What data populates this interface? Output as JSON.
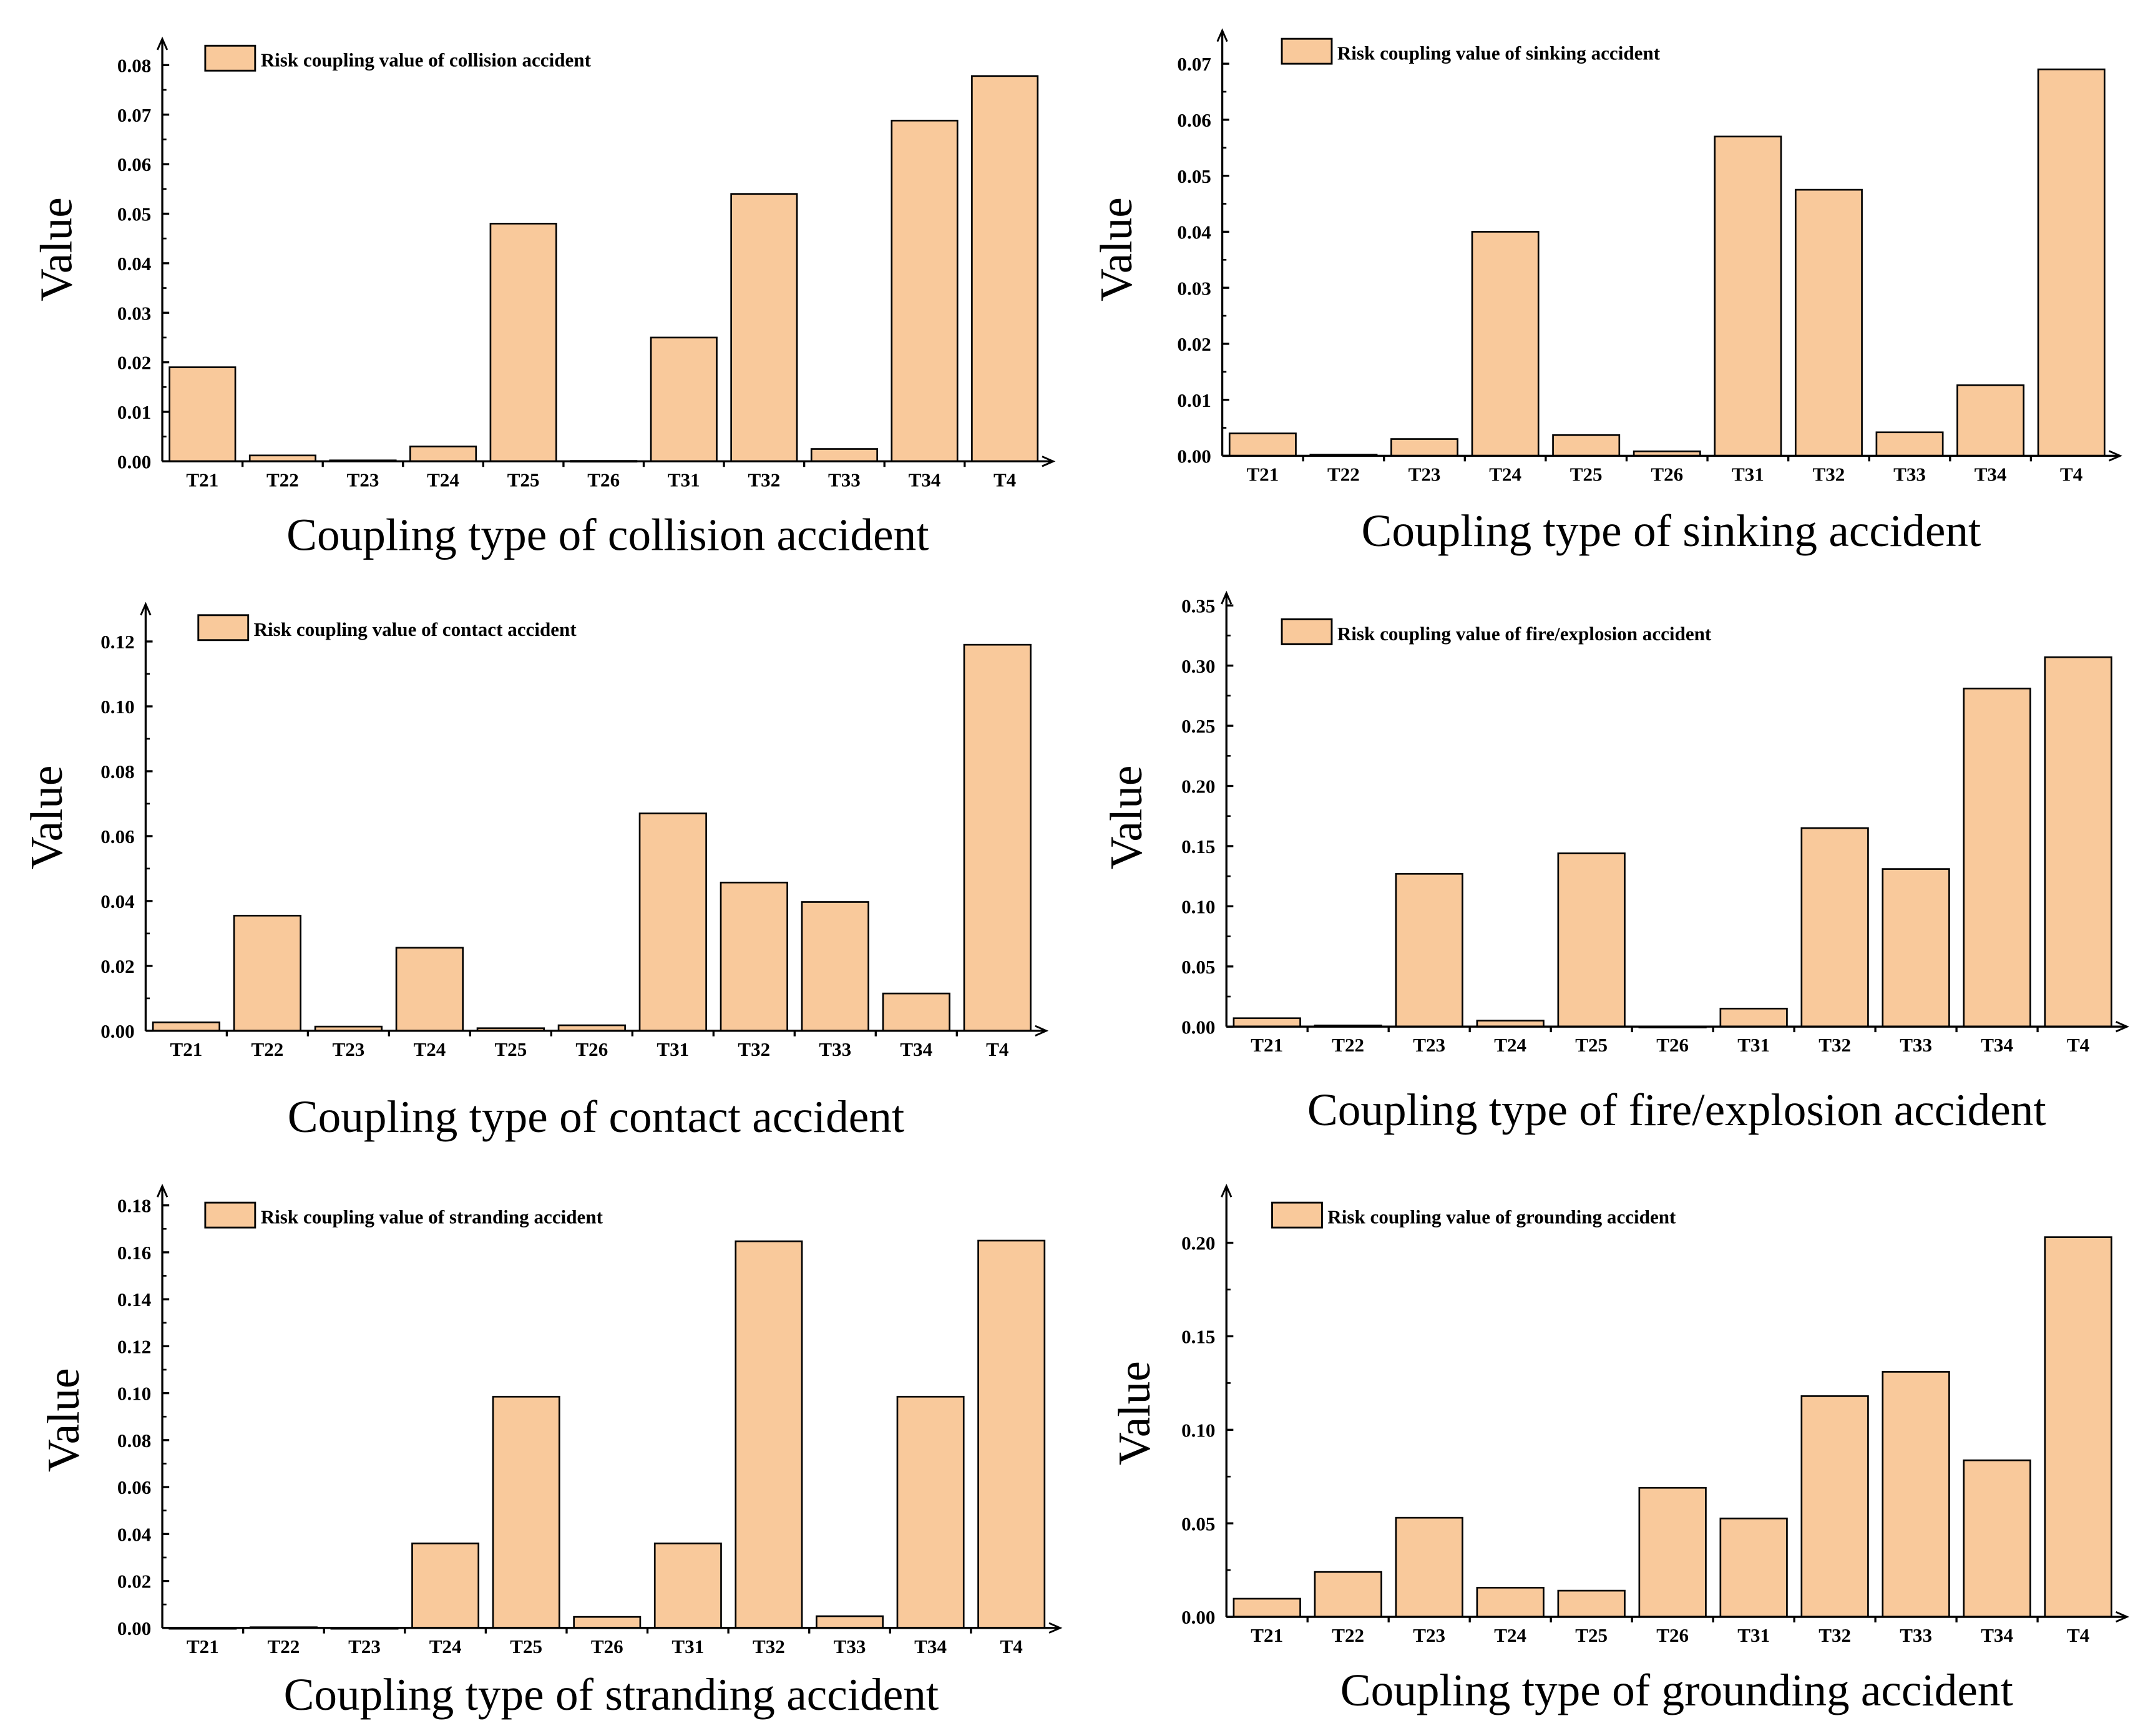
{
  "bar_color": "#F9C99B",
  "chart_data": [
    {
      "type": "bar",
      "title": "",
      "legend": "Risk coupling value of collision accident",
      "legend_position": "top-left",
      "xlabel": "Coupling type of collision accident",
      "ylabel": "Value",
      "categories": [
        "T21",
        "T22",
        "T23",
        "T24",
        "T25",
        "T26",
        "T31",
        "T32",
        "T33",
        "T34",
        "T4"
      ],
      "values": [
        0.019,
        0.0012,
        0.0002,
        0.003,
        0.048,
        0.0001,
        0.025,
        0.054,
        0.0025,
        0.0688,
        0.0778
      ],
      "yticks": [
        "0.00",
        "0.01",
        "0.02",
        "0.03",
        "0.04",
        "0.05",
        "0.06",
        "0.07",
        "0.08"
      ],
      "ylim": [
        0,
        0.08
      ]
    },
    {
      "type": "bar",
      "title": "",
      "legend": "Risk coupling value of sinking accident",
      "legend_position": "top-left",
      "xlabel": "Coupling type of sinking accident",
      "ylabel": "Value",
      "categories": [
        "T21",
        "T22",
        "T23",
        "T24",
        "T25",
        "T26",
        "T31",
        "T32",
        "T33",
        "T34",
        "T4"
      ],
      "values": [
        0.004,
        0.0002,
        0.003,
        0.04,
        0.0037,
        0.0008,
        0.057,
        0.0475,
        0.0042,
        0.0126,
        0.069
      ],
      "yticks": [
        "0.00",
        "0.01",
        "0.02",
        "0.03",
        "0.04",
        "0.05",
        "0.06",
        "0.07"
      ],
      "ylim": [
        0,
        0.07
      ]
    },
    {
      "type": "bar",
      "title": "",
      "legend": "Risk coupling value of contact accident",
      "legend_position": "top-left",
      "xlabel": "Coupling type of contact accident",
      "ylabel": "Value",
      "categories": [
        "T21",
        "T22",
        "T23",
        "T24",
        "T25",
        "T26",
        "T31",
        "T32",
        "T33",
        "T34",
        "T4"
      ],
      "values": [
        0.0026,
        0.0355,
        0.0013,
        0.0256,
        0.0008,
        0.0017,
        0.067,
        0.0457,
        0.0397,
        0.0115,
        0.119
      ],
      "yticks": [
        "0.00",
        "0.02",
        "0.04",
        "0.06",
        "0.08",
        "0.10",
        "0.12"
      ],
      "ylim": [
        0,
        0.12
      ]
    },
    {
      "type": "bar",
      "title": "",
      "legend": "Risk coupling value of fire/explosion accident",
      "legend_position": "top-left",
      "xlabel": "Coupling type of fire/explosion accident",
      "ylabel": "Value",
      "categories": [
        "T21",
        "T22",
        "T23",
        "T24",
        "T25",
        "T26",
        "T31",
        "T32",
        "T33",
        "T34",
        "T4"
      ],
      "values": [
        0.007,
        0.001,
        0.127,
        0.005,
        0.144,
        0.0,
        0.015,
        0.165,
        0.131,
        0.281,
        0.307
      ],
      "yticks": [
        "0.00",
        "0.05",
        "0.10",
        "0.15",
        "0.20",
        "0.25",
        "0.30",
        "0.35"
      ],
      "ylim": [
        0,
        0.35
      ]
    },
    {
      "type": "bar",
      "title": "",
      "legend": "Risk coupling value of stranding accident",
      "legend_position": "top-left",
      "xlabel": "Coupling type of stranding accident",
      "ylabel": "Value",
      "categories": [
        "T21",
        "T22",
        "T23",
        "T24",
        "T25",
        "T26",
        "T31",
        "T32",
        "T33",
        "T34",
        "T4"
      ],
      "values": [
        0.0,
        0.0003,
        0.0,
        0.036,
        0.0985,
        0.0047,
        0.036,
        0.1647,
        0.005,
        0.0985,
        0.165
      ],
      "yticks": [
        "0.00",
        "0.02",
        "0.04",
        "0.06",
        "0.08",
        "0.10",
        "0.12",
        "0.14",
        "0.16",
        "0.18"
      ],
      "ylim": [
        0,
        0.18
      ]
    },
    {
      "type": "bar",
      "title": "",
      "legend": "Risk coupling value of grounding accident",
      "legend_position": "top-left",
      "xlabel": "Coupling type of grounding accident",
      "ylabel": "Value",
      "categories": [
        "T21",
        "T22",
        "T23",
        "T24",
        "T25",
        "T26",
        "T31",
        "T32",
        "T33",
        "T34",
        "T4"
      ],
      "values": [
        0.0097,
        0.024,
        0.053,
        0.0156,
        0.014,
        0.069,
        0.0526,
        0.118,
        0.131,
        0.0837,
        0.203
      ],
      "yticks": [
        "0.00",
        "0.05",
        "0.10",
        "0.15",
        "0.20"
      ],
      "ylim": [
        0,
        0.2
      ]
    }
  ]
}
